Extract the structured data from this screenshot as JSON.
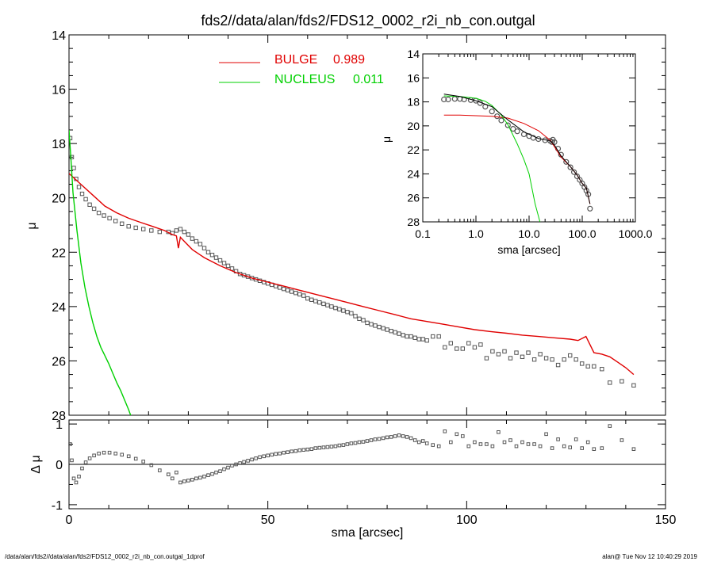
{
  "title": "fds2//data/alan/fds2/FDS12_0002_r2i_nb_con.outgal",
  "footer": {
    "left": "/data/alan/fds2//data/alan/fds2/FDS12_0002_r2i_nb_con.outgal_1dprof",
    "right": "alan@  Tue Nov 12 10:40:29 2019"
  },
  "colors": {
    "bulge": "#e00000",
    "nucleus": "#00d000",
    "data": "#555555",
    "total": "#000000"
  },
  "chart_data": [
    {
      "id": "main",
      "type": "scatter",
      "xlabel": "sma [arcsec]",
      "ylabel": "μ",
      "xlim": [
        0,
        150
      ],
      "ylim": [
        28,
        14
      ],
      "yticks": [
        "14",
        "16",
        "18",
        "20",
        "22",
        "24",
        "26",
        "28"
      ],
      "legend_placement": "top-center",
      "legend": [
        {
          "label": "BULGE",
          "value": "0.989",
          "color": "#e00000"
        },
        {
          "label": "NUCLEUS",
          "value": "0.011",
          "color": "#00d000"
        }
      ],
      "series": [
        {
          "name": "data",
          "kind": "points",
          "x": [
            0.3,
            0.7,
            1.2,
            1.8,
            2.5,
            3.3,
            4.2,
            5.2,
            6.3,
            7.5,
            8.8,
            10.2,
            11.7,
            13.3,
            15.0,
            16.8,
            18.7,
            20.7,
            22.8,
            25.0,
            26.0,
            27.0,
            28.0,
            29.0,
            30.0,
            31.0,
            32.0,
            33.0,
            34.0,
            35.0,
            36.0,
            37.0,
            38.0,
            39.0,
            40.0,
            41.0,
            42.0,
            43.0,
            44.0,
            45.0,
            46.0,
            47.0,
            48.0,
            49.0,
            50.0,
            51.0,
            52.0,
            53.0,
            54.0,
            55.0,
            56.0,
            57.0,
            58.0,
            59.0,
            60.0,
            61.0,
            62.0,
            63.0,
            64.0,
            65.0,
            66.0,
            67.0,
            68.0,
            69.0,
            70.0,
            71.0,
            72.0,
            73.0,
            74.0,
            75.0,
            76.0,
            77.0,
            78.0,
            79.0,
            80.0,
            81.0,
            82.0,
            83.0,
            84.0,
            85.0,
            86.0,
            87.0,
            88.0,
            89.0,
            90.0,
            91.5,
            93.0,
            94.5,
            96.0,
            97.5,
            99.0,
            100.5,
            102.0,
            103.5,
            105.0,
            106.5,
            108.0,
            109.5,
            111.0,
            112.5,
            114.0,
            115.5,
            117.0,
            118.5,
            120.0,
            121.5,
            123.0,
            124.5,
            126.0,
            127.5,
            129.0,
            130.5,
            132.0,
            134.0,
            136.0,
            139.0,
            142.0
          ],
          "y": [
            17.8,
            18.5,
            18.9,
            19.3,
            19.6,
            19.85,
            20.05,
            20.25,
            20.4,
            20.55,
            20.65,
            20.75,
            20.85,
            20.95,
            21.05,
            21.1,
            21.15,
            21.2,
            21.25,
            21.25,
            21.3,
            21.2,
            21.15,
            21.25,
            21.35,
            21.5,
            21.6,
            21.7,
            21.85,
            22.0,
            22.1,
            22.2,
            22.3,
            22.4,
            22.5,
            22.6,
            22.7,
            22.8,
            22.85,
            22.9,
            22.95,
            23.0,
            23.05,
            23.1,
            23.15,
            23.2,
            23.25,
            23.3,
            23.35,
            23.4,
            23.45,
            23.5,
            23.55,
            23.6,
            23.7,
            23.75,
            23.8,
            23.85,
            23.9,
            23.95,
            24.0,
            24.05,
            24.1,
            24.15,
            24.2,
            24.25,
            24.35,
            24.45,
            24.5,
            24.6,
            24.65,
            24.7,
            24.75,
            24.8,
            24.85,
            24.9,
            24.95,
            25.0,
            25.05,
            25.1,
            25.1,
            25.15,
            25.2,
            25.2,
            25.25,
            25.1,
            25.1,
            25.5,
            25.35,
            25.55,
            25.55,
            25.35,
            25.5,
            25.4,
            25.9,
            25.65,
            25.75,
            25.65,
            25.9,
            25.7,
            25.85,
            25.7,
            25.95,
            25.75,
            25.9,
            25.95,
            26.15,
            25.95,
            25.8,
            25.95,
            26.1,
            26.2,
            26.2,
            26.3,
            26.8,
            26.75,
            26.9
          ]
        },
        {
          "name": "BULGE",
          "kind": "line",
          "color": "#e00000",
          "x": [
            0,
            3,
            6,
            9,
            12,
            15,
            18,
            21,
            24,
            26,
            27,
            27.5,
            28,
            29,
            31,
            34,
            38,
            42,
            46,
            50,
            54,
            58,
            62,
            66,
            70,
            74,
            78,
            82,
            86,
            90,
            94,
            98,
            102,
            106,
            110,
            114,
            118,
            122,
            126,
            128,
            130,
            132,
            134,
            136,
            138,
            140,
            142
          ],
          "y": [
            19.1,
            19.5,
            19.9,
            20.3,
            20.55,
            20.75,
            20.9,
            21.05,
            21.2,
            21.35,
            21.4,
            21.85,
            21.45,
            21.6,
            21.9,
            22.2,
            22.5,
            22.75,
            22.95,
            23.1,
            23.25,
            23.4,
            23.55,
            23.7,
            23.85,
            24.0,
            24.15,
            24.3,
            24.45,
            24.55,
            24.65,
            24.75,
            24.85,
            24.92,
            24.98,
            25.05,
            25.1,
            25.15,
            25.2,
            25.25,
            25.1,
            25.7,
            25.75,
            25.85,
            26.05,
            26.25,
            26.5
          ]
        },
        {
          "name": "NUCLEUS",
          "kind": "line",
          "color": "#00d000",
          "x": [
            0,
            0.5,
            1,
            2,
            3,
            4,
            5,
            6,
            7,
            8,
            9,
            10,
            11,
            12,
            13,
            14,
            15,
            16
          ],
          "y": [
            17.5,
            18.6,
            19.8,
            21.2,
            22.4,
            23.3,
            24.0,
            24.6,
            25.1,
            25.5,
            25.8,
            26.1,
            26.45,
            26.8,
            27.1,
            27.45,
            27.8,
            28.2
          ]
        }
      ]
    },
    {
      "id": "residual",
      "type": "scatter",
      "xlabel": "sma [arcsec]",
      "ylabel": "Δ μ",
      "xlim": [
        0,
        150
      ],
      "ylim": [
        -1.1,
        1.1
      ],
      "xticks": [
        "0",
        "50",
        "100",
        "150"
      ],
      "yticks": [
        "-1",
        "0",
        "1"
      ],
      "series": [
        {
          "name": "residual",
          "kind": "points",
          "x": [
            0.3,
            0.7,
            1.2,
            1.8,
            2.5,
            3.3,
            4.2,
            5.2,
            6.3,
            7.5,
            8.8,
            10.2,
            11.7,
            13.3,
            15.0,
            16.8,
            18.7,
            20.7,
            22.8,
            25.0,
            26.0,
            27.0,
            28.0,
            29.0,
            30.0,
            31.0,
            32.0,
            33.0,
            34.0,
            35.0,
            36.0,
            37.0,
            38.0,
            39.0,
            40.0,
            41.0,
            42.0,
            43.0,
            44.0,
            45.0,
            46.0,
            47.0,
            48.0,
            49.0,
            50.0,
            51.0,
            52.0,
            53.0,
            54.0,
            55.0,
            56.0,
            57.0,
            58.0,
            59.0,
            60.0,
            61.0,
            62.0,
            63.0,
            64.0,
            65.0,
            66.0,
            67.0,
            68.0,
            69.0,
            70.0,
            71.0,
            72.0,
            73.0,
            74.0,
            75.0,
            76.0,
            77.0,
            78.0,
            79.0,
            80.0,
            81.0,
            82.0,
            83.0,
            84.0,
            85.0,
            86.0,
            87.0,
            88.0,
            89.0,
            90.0,
            91.5,
            93.0,
            94.5,
            96.0,
            97.5,
            99.0,
            100.5,
            102.0,
            103.5,
            105.0,
            106.5,
            108.0,
            109.5,
            111.0,
            112.5,
            114.0,
            115.5,
            117.0,
            118.5,
            120.0,
            121.5,
            123.0,
            124.5,
            126.0,
            127.5,
            129.0,
            130.5,
            132.0,
            134.0,
            136.0,
            139.0,
            142.0
          ],
          "y": [
            0.5,
            0.1,
            -0.35,
            -0.45,
            -0.3,
            -0.1,
            0.05,
            0.15,
            0.22,
            0.27,
            0.29,
            0.29,
            0.27,
            0.24,
            0.2,
            0.14,
            0.07,
            -0.02,
            -0.15,
            -0.25,
            -0.35,
            -0.2,
            -0.45,
            -0.42,
            -0.4,
            -0.38,
            -0.35,
            -0.33,
            -0.3,
            -0.27,
            -0.24,
            -0.2,
            -0.17,
            -0.12,
            -0.08,
            -0.03,
            0.0,
            0.03,
            0.06,
            0.09,
            0.12,
            0.15,
            0.18,
            0.2,
            0.22,
            0.24,
            0.26,
            0.27,
            0.29,
            0.3,
            0.32,
            0.33,
            0.35,
            0.36,
            0.37,
            0.38,
            0.4,
            0.41,
            0.42,
            0.43,
            0.44,
            0.45,
            0.47,
            0.48,
            0.5,
            0.52,
            0.53,
            0.55,
            0.56,
            0.58,
            0.6,
            0.62,
            0.63,
            0.65,
            0.67,
            0.68,
            0.7,
            0.72,
            0.7,
            0.68,
            0.65,
            0.6,
            0.55,
            0.58,
            0.52,
            0.48,
            0.45,
            0.82,
            0.55,
            0.75,
            0.7,
            0.45,
            0.55,
            0.5,
            0.5,
            0.45,
            0.8,
            0.55,
            0.6,
            0.45,
            0.55,
            0.5,
            0.5,
            0.45,
            0.75,
            0.4,
            0.62,
            0.45,
            0.42,
            0.62,
            0.4,
            0.55,
            0.38,
            0.4,
            0.95,
            0.6,
            0.38
          ]
        }
      ]
    },
    {
      "id": "inset",
      "type": "line",
      "xlabel": "sma [arcsec]",
      "ylabel": "μ",
      "xscale": "log",
      "xlim": [
        0.1,
        1000
      ],
      "ylim": [
        28,
        14
      ],
      "xticks": [
        "0.1",
        "1.0",
        "10.0",
        "100.0",
        "1000.0"
      ],
      "yticks": [
        "14",
        "16",
        "18",
        "20",
        "22",
        "24",
        "26",
        "28"
      ],
      "series": [
        {
          "name": "data",
          "kind": "points",
          "x": [
            0.25,
            0.3,
            0.4,
            0.5,
            0.6,
            0.8,
            1.0,
            1.2,
            1.5,
            2.0,
            2.5,
            3.0,
            4.0,
            5.0,
            6.0,
            8.0,
            10.0,
            12.0,
            15.0,
            20.0,
            25.0,
            27.0,
            28.0,
            30.0,
            35.0,
            40.0,
            50.0,
            60.0,
            70.0,
            80.0,
            90.0,
            100.0,
            110.0,
            120.0,
            130.0,
            140.0
          ],
          "y": [
            17.8,
            17.8,
            17.75,
            17.75,
            17.8,
            17.85,
            17.9,
            18.1,
            18.4,
            18.8,
            19.2,
            19.55,
            19.95,
            20.25,
            20.45,
            20.7,
            20.85,
            21.0,
            21.1,
            21.2,
            21.25,
            21.35,
            21.15,
            21.35,
            21.9,
            22.4,
            23.0,
            23.45,
            23.85,
            24.2,
            24.5,
            24.8,
            25.1,
            25.4,
            25.7,
            26.9
          ]
        },
        {
          "name": "BULGE",
          "kind": "line",
          "color": "#e00000",
          "x": [
            0.25,
            0.5,
            1,
            2,
            4,
            8,
            15,
            25,
            40,
            60,
            80,
            100,
            120,
            140
          ],
          "y": [
            19.1,
            19.1,
            19.15,
            19.2,
            19.35,
            19.8,
            20.4,
            21.2,
            22.6,
            23.4,
            24.1,
            24.8,
            25.2,
            26.5
          ]
        },
        {
          "name": "NUCLEUS",
          "kind": "line",
          "color": "#00d000",
          "x": [
            0.25,
            0.5,
            1,
            1.5,
            2,
            3,
            4,
            6,
            8,
            10,
            13,
            16
          ],
          "y": [
            17.5,
            17.55,
            17.7,
            17.95,
            18.3,
            19.1,
            19.9,
            21.5,
            22.8,
            24.0,
            26.5,
            28.0
          ]
        },
        {
          "name": "total",
          "kind": "line",
          "color": "#000000",
          "x": [
            0.25,
            0.5,
            1,
            2,
            4,
            8,
            15,
            25,
            30,
            40,
            60,
            80,
            100,
            120,
            140
          ],
          "y": [
            17.35,
            17.55,
            17.9,
            18.4,
            19.5,
            20.5,
            21.05,
            21.25,
            21.6,
            22.5,
            23.4,
            24.1,
            24.8,
            25.2,
            26.5
          ]
        }
      ]
    }
  ]
}
